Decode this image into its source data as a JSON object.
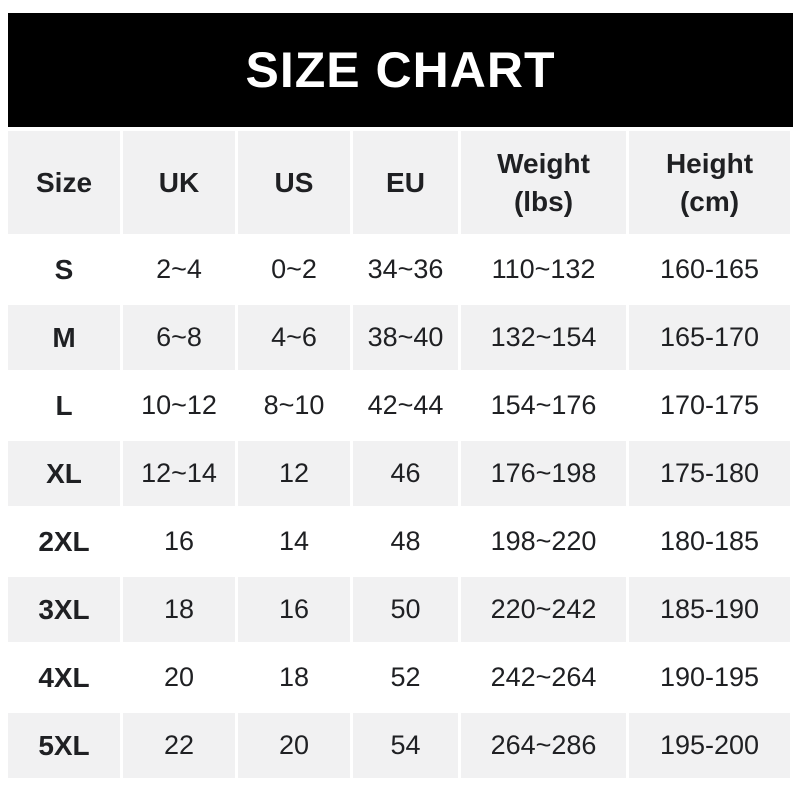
{
  "title": "SIZE CHART",
  "colors": {
    "page_bg": "#ffffff",
    "banner_bg": "#000000",
    "banner_text": "#ffffff",
    "cell_gray": "#f1f1f2",
    "text": "#1f2023"
  },
  "chart_data": {
    "type": "table",
    "title": "SIZE CHART",
    "columns": [
      "Size",
      "UK",
      "US",
      "EU",
      "Weight (lbs)",
      "Height (cm)"
    ],
    "rows": [
      [
        "S",
        "2~4",
        "0~2",
        "34~36",
        "110~132",
        "160-165"
      ],
      [
        "M",
        "6~8",
        "4~6",
        "38~40",
        "132~154",
        "165-170"
      ],
      [
        "L",
        "10~12",
        "8~10",
        "42~44",
        "154~176",
        "170-175"
      ],
      [
        "XL",
        "12~14",
        "12",
        "46",
        "176~198",
        "175-180"
      ],
      [
        "2XL",
        "16",
        "14",
        "48",
        "198~220",
        "180-185"
      ],
      [
        "3XL",
        "18",
        "16",
        "50",
        "220~242",
        "185-190"
      ],
      [
        "4XL",
        "20",
        "18",
        "52",
        "242~264",
        "190-195"
      ],
      [
        "5XL",
        "22",
        "20",
        "54",
        "264~286",
        "195-200"
      ]
    ]
  }
}
